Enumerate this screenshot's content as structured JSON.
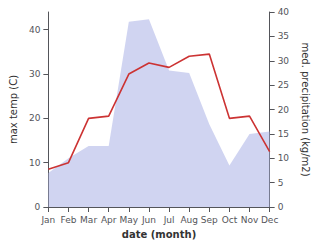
{
  "chart_data": {
    "type": "line",
    "categories": [
      "Jan",
      "Feb",
      "Mar",
      "Apr",
      "May",
      "Jun",
      "Jul",
      "Aug",
      "Sep",
      "Oct",
      "Nov",
      "Dec"
    ],
    "series": [
      {
        "type": "area",
        "axis": "y2",
        "color": "#b0b8e8",
        "values": [
          7.0,
          10.0,
          12.5,
          12.5,
          38.0,
          38.5,
          28.0,
          27.5,
          17.0,
          8.5,
          15.0,
          15.5
        ]
      },
      {
        "type": "line",
        "color": "#cc3333",
        "values": [
          8.5,
          10.0,
          20.0,
          20.5,
          30.0,
          32.5,
          31.5,
          34.0,
          34.5,
          20.0,
          20.5,
          12.5
        ]
      }
    ],
    "xlabel": "date (month)",
    "ylabel": "max temp (C)",
    "y2label": "med. precipitation (kg/m2)",
    "ylim": [
      0,
      44
    ],
    "yticks": [
      0,
      10,
      20,
      30,
      40
    ],
    "y2lim": [
      0,
      40
    ],
    "y2ticks": [
      0,
      5,
      10,
      15,
      20,
      25,
      30,
      35,
      40
    ],
    "grid": false
  }
}
